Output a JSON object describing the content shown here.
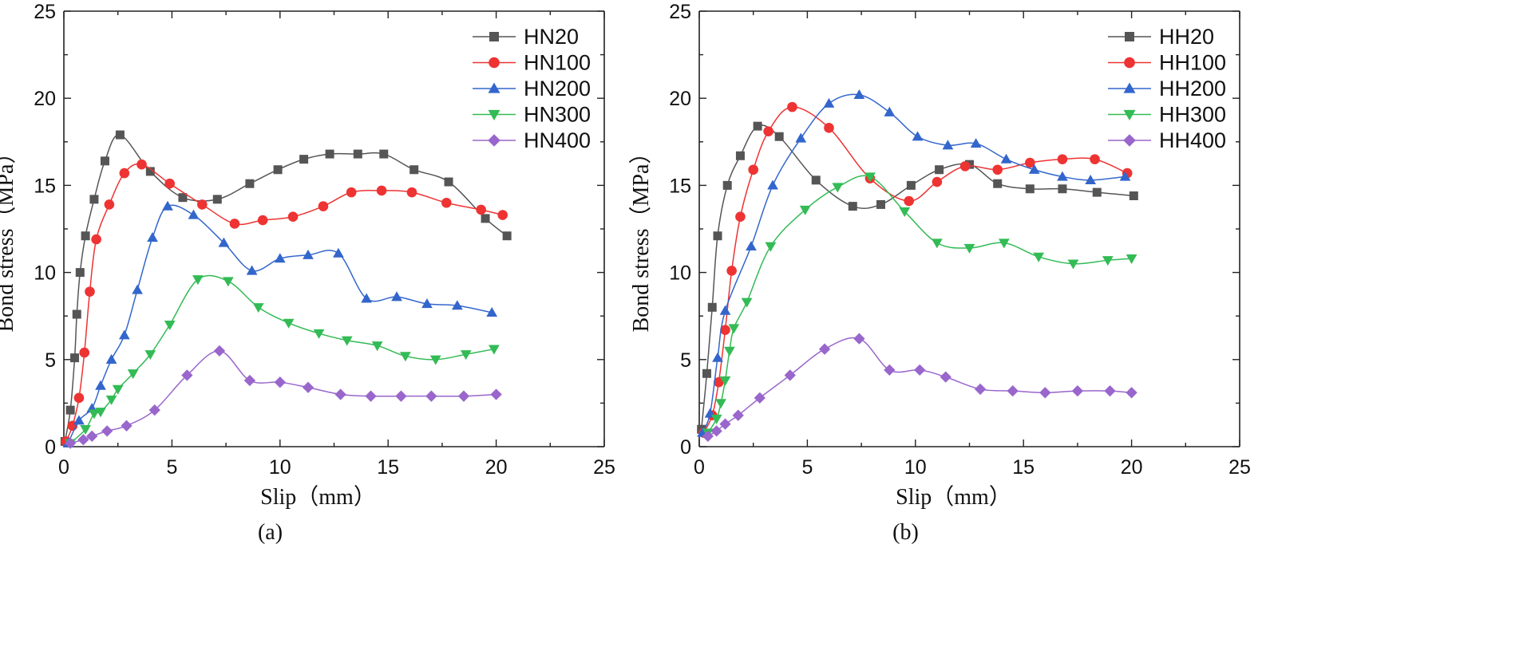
{
  "chart_data": [
    {
      "type": "line",
      "panel_label": "(a)",
      "xlabel": "Slip（mm）",
      "ylabel": "Bond stress（MPa）",
      "xlim": [
        0,
        25
      ],
      "ylim": [
        0,
        25
      ],
      "xticks": [
        "0",
        "5",
        "10",
        "15",
        "20",
        "25"
      ],
      "yticks": [
        "0",
        "5",
        "10",
        "15",
        "20",
        "25"
      ],
      "legend_position": "top-right",
      "series": [
        {
          "name": "HN20",
          "marker": "square",
          "color": "#555555",
          "points": [
            [
              0.05,
              0.3
            ],
            [
              0.3,
              2.1
            ],
            [
              0.5,
              5.1
            ],
            [
              0.6,
              7.6
            ],
            [
              0.75,
              10.0
            ],
            [
              1.0,
              12.1
            ],
            [
              1.4,
              14.2
            ],
            [
              1.9,
              16.4
            ],
            [
              2.6,
              17.9
            ],
            [
              4.0,
              15.8
            ],
            [
              5.5,
              14.3
            ],
            [
              7.1,
              14.2
            ],
            [
              8.6,
              15.1
            ],
            [
              9.9,
              15.9
            ],
            [
              11.1,
              16.5
            ],
            [
              12.3,
              16.8
            ],
            [
              13.6,
              16.8
            ],
            [
              14.8,
              16.8
            ],
            [
              16.2,
              15.9
            ],
            [
              17.8,
              15.2
            ],
            [
              19.5,
              13.1
            ],
            [
              20.5,
              12.1
            ]
          ]
        },
        {
          "name": "HN100",
          "marker": "circle",
          "color": "#ee3333",
          "points": [
            [
              0.1,
              0.3
            ],
            [
              0.4,
              1.2
            ],
            [
              0.7,
              2.8
            ],
            [
              0.95,
              5.4
            ],
            [
              1.2,
              8.9
            ],
            [
              1.5,
              11.9
            ],
            [
              2.1,
              13.9
            ],
            [
              2.8,
              15.7
            ],
            [
              3.6,
              16.2
            ],
            [
              4.9,
              15.1
            ],
            [
              6.4,
              13.9
            ],
            [
              7.9,
              12.8
            ],
            [
              9.2,
              13.0
            ],
            [
              10.6,
              13.2
            ],
            [
              12.0,
              13.8
            ],
            [
              13.3,
              14.6
            ],
            [
              14.7,
              14.7
            ],
            [
              16.1,
              14.6
            ],
            [
              17.7,
              14.0
            ],
            [
              19.3,
              13.6
            ],
            [
              20.3,
              13.3
            ]
          ]
        },
        {
          "name": "HN200",
          "marker": "triangle",
          "color": "#3366cc",
          "points": [
            [
              0.2,
              0.2
            ],
            [
              0.7,
              1.5
            ],
            [
              1.3,
              2.2
            ],
            [
              1.7,
              3.5
            ],
            [
              2.2,
              5.0
            ],
            [
              2.8,
              6.4
            ],
            [
              3.4,
              9.0
            ],
            [
              4.1,
              12.0
            ],
            [
              4.8,
              13.8
            ],
            [
              6.0,
              13.3
            ],
            [
              7.4,
              11.7
            ],
            [
              8.7,
              10.1
            ],
            [
              10.0,
              10.8
            ],
            [
              11.3,
              11.0
            ],
            [
              12.7,
              11.1
            ],
            [
              14.0,
              8.5
            ],
            [
              15.4,
              8.6
            ],
            [
              16.8,
              8.2
            ],
            [
              18.2,
              8.1
            ],
            [
              19.8,
              7.7
            ]
          ]
        },
        {
          "name": "HN300",
          "marker": "triangle-down",
          "color": "#33bb55",
          "points": [
            [
              0.3,
              0.2
            ],
            [
              1.0,
              1.0
            ],
            [
              1.4,
              1.9
            ],
            [
              1.7,
              2.0
            ],
            [
              2.2,
              2.7
            ],
            [
              2.5,
              3.3
            ],
            [
              3.2,
              4.2
            ],
            [
              4.0,
              5.3
            ],
            [
              4.9,
              7.0
            ],
            [
              6.2,
              9.6
            ],
            [
              7.6,
              9.5
            ],
            [
              9.0,
              8.0
            ],
            [
              10.4,
              7.1
            ],
            [
              11.8,
              6.5
            ],
            [
              13.1,
              6.1
            ],
            [
              14.5,
              5.8
            ],
            [
              15.8,
              5.2
            ],
            [
              17.2,
              5.0
            ],
            [
              18.6,
              5.3
            ],
            [
              19.9,
              5.6
            ]
          ]
        },
        {
          "name": "HN400",
          "marker": "diamond",
          "color": "#9966cc",
          "points": [
            [
              0.3,
              0.2
            ],
            [
              0.9,
              0.4
            ],
            [
              1.3,
              0.6
            ],
            [
              2.0,
              0.9
            ],
            [
              2.9,
              1.2
            ],
            [
              4.2,
              2.1
            ],
            [
              5.7,
              4.1
            ],
            [
              7.2,
              5.5
            ],
            [
              8.6,
              3.8
            ],
            [
              10.0,
              3.7
            ],
            [
              11.3,
              3.4
            ],
            [
              12.8,
              3.0
            ],
            [
              14.2,
              2.9
            ],
            [
              15.6,
              2.9
            ],
            [
              17.0,
              2.9
            ],
            [
              18.5,
              2.9
            ],
            [
              20.0,
              3.0
            ]
          ]
        }
      ]
    },
    {
      "type": "line",
      "panel_label": "(b)",
      "xlabel": "Slip（mm）",
      "ylabel": "Bond stress（MPa）",
      "xlim": [
        0,
        25
      ],
      "ylim": [
        0,
        25
      ],
      "xticks": [
        "0",
        "5",
        "10",
        "15",
        "20",
        "25"
      ],
      "yticks": [
        "0",
        "5",
        "10",
        "15",
        "20",
        "25"
      ],
      "legend_position": "top-right",
      "series": [
        {
          "name": "HH20",
          "marker": "square",
          "color": "#555555",
          "points": [
            [
              0.1,
              1.0
            ],
            [
              0.35,
              4.2
            ],
            [
              0.6,
              8.0
            ],
            [
              0.85,
              12.1
            ],
            [
              1.3,
              15.0
            ],
            [
              1.9,
              16.7
            ],
            [
              2.7,
              18.4
            ],
            [
              3.7,
              17.8
            ],
            [
              5.4,
              15.3
            ],
            [
              7.1,
              13.8
            ],
            [
              8.4,
              13.9
            ],
            [
              9.8,
              15.0
            ],
            [
              11.1,
              15.9
            ],
            [
              12.5,
              16.2
            ],
            [
              13.8,
              15.1
            ],
            [
              15.3,
              14.8
            ],
            [
              16.8,
              14.8
            ],
            [
              18.4,
              14.6
            ],
            [
              20.1,
              14.4
            ]
          ]
        },
        {
          "name": "HH100",
          "marker": "circle",
          "color": "#ee3333",
          "points": [
            [
              0.2,
              0.8
            ],
            [
              0.6,
              1.8
            ],
            [
              0.9,
              3.7
            ],
            [
              1.2,
              6.7
            ],
            [
              1.5,
              10.1
            ],
            [
              1.9,
              13.2
            ],
            [
              2.5,
              15.9
            ],
            [
              3.2,
              18.1
            ],
            [
              4.3,
              19.5
            ],
            [
              6.0,
              18.3
            ],
            [
              7.9,
              15.4
            ],
            [
              9.7,
              14.1
            ],
            [
              11.0,
              15.2
            ],
            [
              12.3,
              16.1
            ],
            [
              13.8,
              15.9
            ],
            [
              15.3,
              16.3
            ],
            [
              16.8,
              16.5
            ],
            [
              18.3,
              16.5
            ],
            [
              19.8,
              15.7
            ]
          ]
        },
        {
          "name": "HH200",
          "marker": "triangle",
          "color": "#3366cc",
          "points": [
            [
              0.15,
              0.8
            ],
            [
              0.5,
              1.9
            ],
            [
              0.85,
              5.1
            ],
            [
              1.2,
              7.8
            ],
            [
              2.4,
              11.5
            ],
            [
              3.4,
              15.0
            ],
            [
              4.7,
              17.7
            ],
            [
              6.0,
              19.7
            ],
            [
              7.4,
              20.2
            ],
            [
              8.8,
              19.2
            ],
            [
              10.1,
              17.8
            ],
            [
              11.5,
              17.3
            ],
            [
              12.8,
              17.4
            ],
            [
              14.2,
              16.5
            ],
            [
              15.5,
              15.9
            ],
            [
              16.8,
              15.5
            ],
            [
              18.1,
              15.3
            ],
            [
              19.7,
              15.5
            ]
          ]
        },
        {
          "name": "HH300",
          "marker": "triangle-down",
          "color": "#33bb55",
          "points": [
            [
              0.4,
              0.8
            ],
            [
              0.8,
              1.6
            ],
            [
              1.0,
              2.5
            ],
            [
              1.2,
              3.8
            ],
            [
              1.4,
              5.5
            ],
            [
              1.6,
              6.8
            ],
            [
              2.2,
              8.3
            ],
            [
              3.3,
              11.5
            ],
            [
              4.9,
              13.6
            ],
            [
              6.4,
              14.9
            ],
            [
              7.9,
              15.5
            ],
            [
              9.5,
              13.5
            ],
            [
              11.0,
              11.7
            ],
            [
              12.5,
              11.4
            ],
            [
              14.1,
              11.7
            ],
            [
              15.7,
              10.9
            ],
            [
              17.3,
              10.5
            ],
            [
              18.9,
              10.7
            ],
            [
              20.0,
              10.8
            ]
          ]
        },
        {
          "name": "HH400",
          "marker": "diamond",
          "color": "#9966cc",
          "points": [
            [
              0.4,
              0.6
            ],
            [
              0.8,
              0.9
            ],
            [
              1.2,
              1.3
            ],
            [
              1.8,
              1.8
            ],
            [
              2.8,
              2.8
            ],
            [
              4.2,
              4.1
            ],
            [
              5.8,
              5.6
            ],
            [
              7.4,
              6.2
            ],
            [
              8.8,
              4.4
            ],
            [
              10.2,
              4.4
            ],
            [
              11.4,
              4.0
            ],
            [
              13.0,
              3.3
            ],
            [
              14.5,
              3.2
            ],
            [
              16.0,
              3.1
            ],
            [
              17.5,
              3.2
            ],
            [
              19.0,
              3.2
            ],
            [
              20.0,
              3.1
            ]
          ]
        }
      ]
    }
  ]
}
